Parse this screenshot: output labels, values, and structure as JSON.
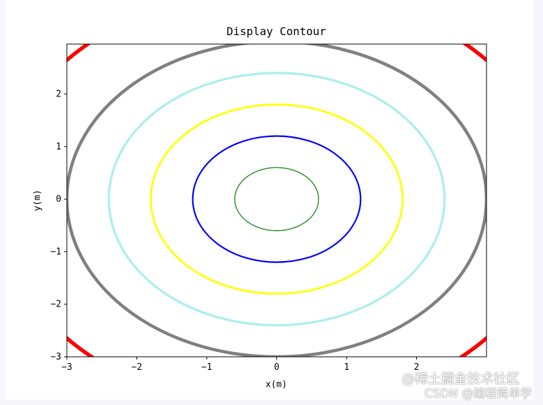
{
  "chart_data": {
    "type": "contour",
    "title": "Display Contour",
    "xlabel": "x(m)",
    "ylabel": "y(m)",
    "xlim": [
      -3,
      3
    ],
    "ylim": [
      -3,
      2.95
    ],
    "xticks": [
      -3,
      -2,
      -1,
      0,
      1,
      2
    ],
    "yticks": [
      -3,
      -2,
      -1,
      0,
      1,
      2
    ],
    "xtick_labels": [
      "−3",
      "−2",
      "−1",
      "0",
      "1",
      "2"
    ],
    "ytick_labels": [
      "−3",
      "−2",
      "−1",
      "0",
      "1",
      "2"
    ],
    "function": "x^2 + y^2",
    "levels": [
      {
        "value": 0.36,
        "radius": 0.6,
        "color": "#228b22"
      },
      {
        "value": 1.44,
        "radius": 1.2,
        "color": "#0000ff"
      },
      {
        "value": 3.24,
        "radius": 1.8,
        "color": "#ffff00"
      },
      {
        "value": 5.76,
        "radius": 2.4,
        "color": "#aeeeee"
      },
      {
        "value": 9.0,
        "radius": 3.0,
        "color": "#808080"
      },
      {
        "value": 16.0,
        "radius": 4.0,
        "color": "#ff0000"
      }
    ],
    "grid": false
  },
  "watermark": {
    "line1": "@稀土掘金技术社区",
    "line2": "CSDN @编程简单学"
  }
}
